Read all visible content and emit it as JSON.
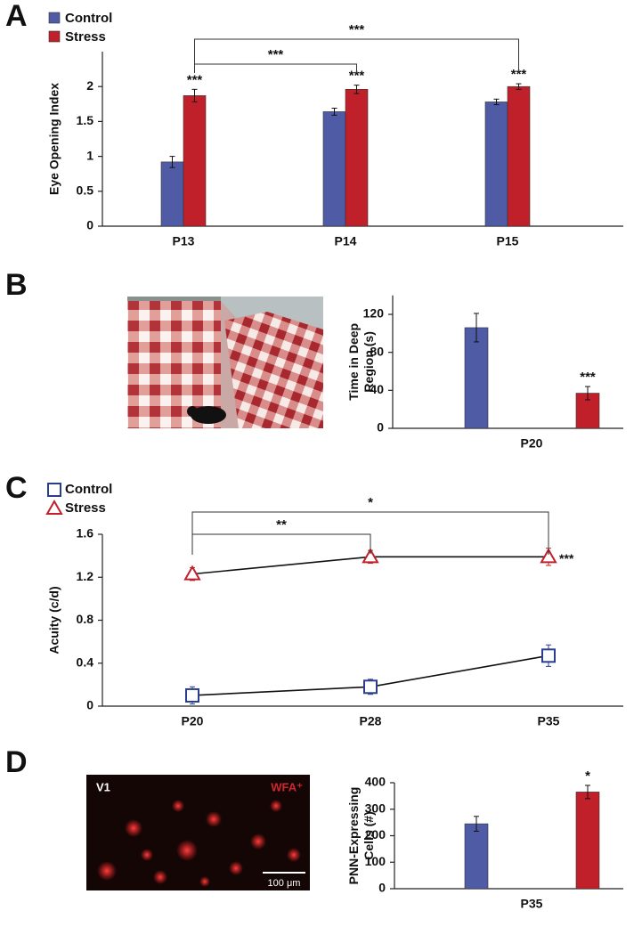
{
  "chart_data": [
    {
      "type": "bar",
      "panel": "A",
      "ylabel": [
        "Eye Opening Index"
      ],
      "categories": [
        "P13",
        "P14",
        "P15"
      ],
      "series": [
        {
          "name": "Control",
          "color": "#4f5ba5",
          "values": [
            0.92,
            1.64,
            1.78
          ],
          "errors": [
            0.08,
            0.05,
            0.04
          ]
        },
        {
          "name": "Stress",
          "color": "#c0202a",
          "values": [
            1.87,
            1.96,
            2.0
          ],
          "errors": [
            0.09,
            0.06,
            0.04
          ],
          "significance": [
            "***",
            "***",
            "***"
          ]
        }
      ],
      "ylim": [
        0,
        2.5
      ],
      "yticks": [
        0,
        0.5,
        1,
        1.5,
        2
      ],
      "legend": "upper left",
      "brackets": [
        {
          "from": "P13",
          "to": "P14",
          "text": "***"
        },
        {
          "from": "P13",
          "to": "P15",
          "text": "***"
        }
      ]
    },
    {
      "type": "bar",
      "panel": "B",
      "ylabel": [
        "Time in Deep",
        "Region (s)"
      ],
      "categories": [
        "P20"
      ],
      "series": [
        {
          "color": "#4f5ba5",
          "values": [
            106
          ],
          "errors": [
            15
          ]
        },
        {
          "color": "#c0202a",
          "values": [
            37
          ],
          "errors": [
            7
          ],
          "significance": [
            "***"
          ]
        }
      ],
      "ylim": [
        0,
        140
      ],
      "yticks": [
        0,
        40,
        80,
        120
      ]
    },
    {
      "type": "line",
      "panel": "C",
      "ylabel": [
        "Acuity (c/d)"
      ],
      "categories": [
        "P20",
        "P28",
        "P35"
      ],
      "series": [
        {
          "name": "Control",
          "color": "#2a3d8f",
          "marker": "square",
          "values": [
            0.1,
            0.18,
            0.47
          ],
          "errors": [
            0.08,
            0.07,
            0.1
          ]
        },
        {
          "name": "Stress",
          "color": "#c0202a",
          "marker": "triangle",
          "values": [
            1.23,
            1.39,
            1.39
          ],
          "errors": [
            0.06,
            0.06,
            0.08
          ],
          "significance": [
            null,
            null,
            "***"
          ]
        }
      ],
      "ylim": [
        0,
        1.6
      ],
      "yticks": [
        0,
        0.4,
        0.8,
        1.2,
        1.6
      ],
      "legend": "upper left",
      "brackets": [
        {
          "from": "P20",
          "to": "P28",
          "text": "**"
        },
        {
          "from": "P20",
          "to": "P35",
          "text": "*"
        }
      ]
    },
    {
      "type": "bar",
      "panel": "D",
      "ylabel": [
        "PNN-Expressing",
        "Cells (#)"
      ],
      "categories": [
        "P35"
      ],
      "series": [
        {
          "color": "#4f5ba5",
          "values": [
            245
          ],
          "errors": [
            28
          ]
        },
        {
          "color": "#c0202a",
          "values": [
            365
          ],
          "errors": [
            25
          ],
          "significance": [
            "*"
          ]
        }
      ],
      "ylim": [
        0,
        400
      ],
      "yticks": [
        0,
        100,
        200,
        300,
        400
      ],
      "image_labels": [
        "V1",
        "WFA⁺",
        "100 μm"
      ]
    }
  ]
}
